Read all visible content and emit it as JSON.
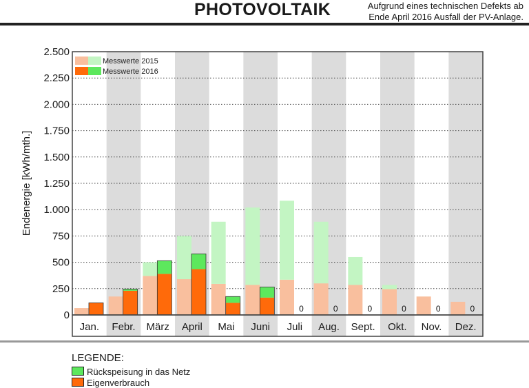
{
  "header": {
    "title": "PHOTOVOLTAIK",
    "note_line1": "Aufgrund eines technischen Defekts ab",
    "note_line2": "Ende April 2016 Ausfall der PV-Anlage."
  },
  "legend_bottom": {
    "title": "LEGENDE:",
    "items": [
      {
        "label": "Rückspeisung in das Netz",
        "color": "#5de85d"
      },
      {
        "label": "Eigenverbrauch",
        "color": "#ff6a0a"
      }
    ]
  },
  "colors": {
    "eigen_2015": "#f9bf9e",
    "rueck_2015": "#c3f5c3",
    "eigen_2016": "#ff6a0a",
    "rueck_2016": "#5de85d",
    "stripe": "#dcdcdc"
  },
  "chart_data": {
    "type": "bar",
    "ylabel": "Endenergie [kWh/mth.]",
    "xlabel": "",
    "ylim": [
      0,
      2500
    ],
    "yticks": [
      0,
      250,
      500,
      750,
      1000,
      1250,
      1500,
      1750,
      2000,
      2250,
      2500
    ],
    "ytick_labels": [
      "0",
      "250",
      "500",
      "750",
      "1.000",
      "1.250",
      "1.500",
      "1.750",
      "2.000",
      "2.250",
      "2.500"
    ],
    "grid": "dotted horizontal",
    "legend_position": "top-left",
    "categories": [
      "Jan.",
      "Febr.",
      "März",
      "April",
      "Mai",
      "Juni",
      "Juli",
      "Aug.",
      "Sept.",
      "Okt.",
      "Nov.",
      "Dez."
    ],
    "legend": [
      "Messwerte 2015",
      "Messwerte 2016"
    ],
    "series": [
      {
        "name": "Messwerte 2015",
        "eigenverbrauch": [
          65,
          175,
          370,
          340,
          295,
          285,
          335,
          300,
          285,
          245,
          175,
          125
        ],
        "rueckspeisung": [
          0,
          0,
          130,
          410,
          590,
          735,
          750,
          585,
          265,
          40,
          0,
          0
        ]
      },
      {
        "name": "Messwerte 2016",
        "eigenverbrauch": [
          115,
          230,
          390,
          435,
          115,
          165,
          0,
          0,
          0,
          0,
          0,
          0
        ],
        "rueckspeisung": [
          0,
          15,
          125,
          145,
          60,
          100,
          0,
          0,
          0,
          0,
          0,
          0
        ]
      }
    ],
    "zero_labels": [
      "",
      "",
      "",
      "",
      "",
      "",
      "0",
      "0",
      "0",
      "0",
      "0",
      "0"
    ]
  }
}
